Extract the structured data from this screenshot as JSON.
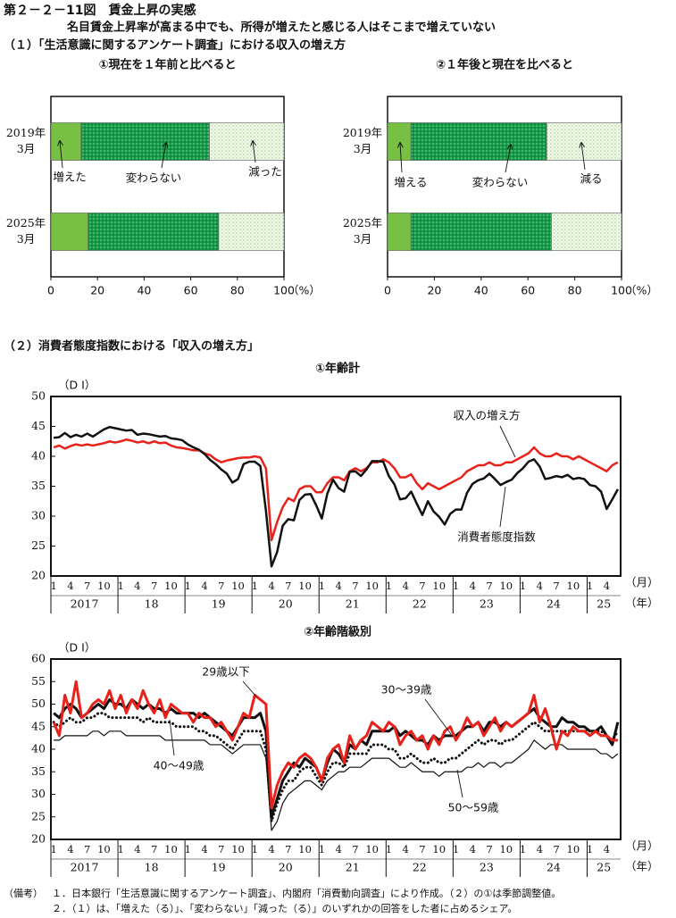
{
  "header": {
    "title": "第２－２－11図　賃金上昇の実感",
    "subtitle": "名目賃金上昇率が高まる中でも、所得が増えたと感じる人はそこまで増えていない"
  },
  "sections": [
    "（１）「生活意識に関するアンケート調査」における収入の増え方",
    "（２）消費者態度指数における「収入の増え方」"
  ],
  "notes": {
    "label": "（備考）",
    "items": [
      "１．日本銀行「生活意識に関するアンケート調査」、内閣府「消費動向調査」により作成。（２）の①は季節調整値。",
      "２．（１）は、「増えた（る）」、「変わらない」「減った（る）」のいずれかの回答をした者に占めるシェア。"
    ]
  },
  "chart_data": [
    {
      "type": "stacked_barh",
      "title": "①現在を１年前と比べると",
      "categories": [
        [
          "2019年",
          "3月"
        ],
        [
          "2025年",
          "3月"
        ]
      ],
      "series": [
        {
          "name": "増えた",
          "color": "#77c043",
          "pattern": "solid",
          "values": [
            13,
            16
          ]
        },
        {
          "name": "変わらない",
          "color": "#169b48",
          "pattern": "dense-dots",
          "values": [
            55,
            56
          ]
        },
        {
          "name": "減った",
          "color": "#8cc96a",
          "pattern": "sparse-dots",
          "values": [
            32,
            28
          ]
        }
      ],
      "xlim": [
        0,
        100
      ],
      "xticks": [
        0,
        20,
        40,
        60,
        80,
        100
      ],
      "x_unit": "（%）"
    },
    {
      "type": "stacked_barh",
      "title": "②１年後と現在を比べると",
      "categories": [
        [
          "2019年",
          "3月"
        ],
        [
          "2025年",
          "3月"
        ]
      ],
      "series": [
        {
          "name": "増える",
          "color": "#77c043",
          "pattern": "solid",
          "values": [
            10,
            10
          ]
        },
        {
          "name": "変わらない",
          "color": "#169b48",
          "pattern": "dense-dots",
          "values": [
            58,
            60
          ]
        },
        {
          "name": "減る",
          "color": "#8cc96a",
          "pattern": "sparse-dots",
          "values": [
            32,
            30
          ]
        }
      ],
      "xlim": [
        0,
        100
      ],
      "xticks": [
        0,
        20,
        40,
        60,
        80,
        100
      ],
      "x_unit": "（%）"
    },
    {
      "type": "line",
      "title": "①年齢計",
      "y_label": "（D I）",
      "x_unit": "（月）",
      "group_unit": "（年）",
      "categories": [
        "1",
        null,
        null,
        "4",
        null,
        null,
        "7",
        null,
        null,
        "10",
        null,
        null,
        "1",
        null,
        null,
        "4",
        null,
        null,
        "7",
        null,
        null,
        "10",
        null,
        null,
        "1",
        null,
        null,
        "4",
        null,
        null,
        "7",
        null,
        null,
        "10",
        null,
        null,
        "1",
        null,
        null,
        "4",
        null,
        null,
        "7",
        null,
        null,
        "10",
        null,
        null,
        "1",
        null,
        null,
        "4",
        null,
        null,
        "7",
        null,
        null,
        "10",
        null,
        null,
        "1",
        null,
        null,
        "4",
        null,
        null,
        "7",
        null,
        null,
        "10",
        null,
        null,
        "1",
        null,
        null,
        "4",
        null,
        null,
        "7",
        null,
        null,
        "10",
        null,
        null,
        "1",
        null,
        null,
        "4",
        null,
        null,
        "7",
        null,
        null,
        "10",
        null,
        null,
        "1",
        null,
        null,
        "4",
        null,
        null
      ],
      "year_labels": [
        "2017",
        "18",
        "19",
        "20",
        "21",
        "22",
        "23",
        "24",
        "25"
      ],
      "ylim": [
        20,
        50
      ],
      "yticks": [
        20,
        25,
        30,
        35,
        40,
        45,
        50
      ],
      "series": [
        {
          "name": "収入の増え方",
          "color": "#e8221b",
          "width": 2.5,
          "dash": "solid",
          "values": [
            41.5,
            41.8,
            41.3,
            41.7,
            42.0,
            41.8,
            42.0,
            41.8,
            42.0,
            42.2,
            42.5,
            42.3,
            42.5,
            42.8,
            42.6,
            42.3,
            42.5,
            42.2,
            42.5,
            42.2,
            42.3,
            41.8,
            41.5,
            41.4,
            41.2,
            41.0,
            41.0,
            40.5,
            40.2,
            39.5,
            39.0,
            39.3,
            39.5,
            39.7,
            39.8,
            39.8,
            40.0,
            39.8,
            38.0,
            26.0,
            29.0,
            31.5,
            33.0,
            32.5,
            34.5,
            35.0,
            35.0,
            34.0,
            34.0,
            35.5,
            36.5,
            36.5,
            36.0,
            37.5,
            38.0,
            37.5,
            38.0,
            39.0,
            39.0,
            39.5,
            39.0,
            38.0,
            36.5,
            36.5,
            37.0,
            35.5,
            34.5,
            35.5,
            35.0,
            34.5,
            35.0,
            35.5,
            36.0,
            36.5,
            37.5,
            38.0,
            38.5,
            38.5,
            39.0,
            38.5,
            38.5,
            39.0,
            39.0,
            39.5,
            40.0,
            40.5,
            41.5,
            40.5,
            40.0,
            40.0,
            40.5,
            40.0,
            40.0,
            39.5,
            40.0,
            39.5,
            39.0,
            38.5,
            38.0,
            37.5,
            38.5,
            39.0
          ]
        },
        {
          "name": "消費者態度指数",
          "color": "#111111",
          "width": 2.5,
          "dash": "solid",
          "values": [
            43.1,
            43.2,
            43.9,
            43.2,
            43.6,
            43.3,
            43.8,
            43.3,
            43.9,
            44.5,
            44.9,
            44.7,
            44.5,
            44.3,
            44.4,
            43.6,
            43.8,
            43.7,
            43.5,
            43.3,
            43.4,
            43.0,
            42.9,
            42.7,
            42.0,
            41.5,
            41.1,
            40.4,
            39.4,
            38.7,
            37.8,
            37.1,
            35.6,
            36.2,
            38.7,
            39.1,
            39.1,
            38.4,
            30.9,
            21.6,
            24.0,
            28.4,
            29.5,
            29.3,
            32.7,
            33.6,
            33.7,
            31.8,
            29.6,
            33.8,
            36.1,
            34.7,
            34.1,
            37.4,
            37.5,
            36.7,
            37.8,
            39.2,
            39.2,
            39.1,
            36.7,
            35.3,
            32.8,
            33.0,
            34.1,
            32.1,
            30.2,
            32.5,
            30.8,
            29.9,
            28.6,
            30.4,
            31.1,
            31.1,
            33.9,
            35.4,
            36.0,
            36.3,
            37.1,
            36.2,
            35.2,
            35.7,
            36.1,
            37.2,
            38.0,
            39.1,
            39.5,
            38.3,
            36.2,
            36.4,
            36.7,
            36.5,
            36.9,
            36.2,
            36.4,
            36.2,
            35.2,
            35.0,
            34.1,
            31.2,
            32.8,
            34.5
          ]
        }
      ]
    },
    {
      "type": "line",
      "title": "②年齢階級別",
      "y_label": "（D I）",
      "x_unit": "（月）",
      "group_unit": "（年）",
      "categories": [
        "1",
        null,
        null,
        "4",
        null,
        null,
        "7",
        null,
        null,
        "10",
        null,
        null,
        "1",
        null,
        null,
        "4",
        null,
        null,
        "7",
        null,
        null,
        "10",
        null,
        null,
        "1",
        null,
        null,
        "4",
        null,
        null,
        "7",
        null,
        null,
        "10",
        null,
        null,
        "1",
        null,
        null,
        "4",
        null,
        null,
        "7",
        null,
        null,
        "10",
        null,
        null,
        "1",
        null,
        null,
        "4",
        null,
        null,
        "7",
        null,
        null,
        "10",
        null,
        null,
        "1",
        null,
        null,
        "4",
        null,
        null,
        "7",
        null,
        null,
        "10",
        null,
        null,
        "1",
        null,
        null,
        "4",
        null,
        null,
        "7",
        null,
        null,
        "10",
        null,
        null,
        "1",
        null,
        null,
        "4",
        null,
        null,
        "7",
        null,
        null,
        "10",
        null,
        null,
        "1",
        null,
        null,
        "4",
        null,
        null
      ],
      "year_labels": [
        "2017",
        "18",
        "19",
        "20",
        "21",
        "22",
        "23",
        "24",
        "25"
      ],
      "ylim": [
        20,
        60
      ],
      "yticks": [
        20,
        25,
        30,
        35,
        40,
        45,
        50,
        55,
        60
      ],
      "series": [
        {
          "name": "50～59歳",
          "color": "#111111",
          "width": 1.2,
          "dash": "solid",
          "values": [
            42,
            42,
            43,
            43,
            43,
            43,
            43,
            44,
            44,
            43,
            44,
            44,
            44,
            43,
            43,
            43,
            43,
            43,
            43,
            43,
            42,
            42,
            42,
            42,
            42,
            42,
            42,
            42,
            41,
            41,
            41,
            40,
            39,
            40,
            41,
            41,
            41,
            41,
            38,
            22,
            24,
            28,
            30,
            31,
            32,
            33,
            33,
            32,
            31,
            33,
            34,
            35,
            35,
            36,
            36,
            36,
            37,
            38,
            38,
            38,
            38,
            37,
            36,
            36,
            37,
            36,
            35,
            35,
            35,
            34,
            35,
            35,
            35,
            35,
            36,
            36,
            37,
            36,
            37,
            37,
            36,
            37,
            37,
            38,
            39,
            40,
            42,
            41,
            40,
            41,
            41,
            41,
            40,
            40,
            40,
            40,
            40,
            40,
            39,
            39,
            38,
            39
          ]
        },
        {
          "name": "40～49歳",
          "color": "#111111",
          "width": 3,
          "dash": "dot",
          "values": [
            46,
            45,
            46,
            47,
            46,
            46,
            47,
            47,
            48,
            48,
            47,
            47,
            47,
            47,
            47,
            47,
            46,
            47,
            46,
            46,
            46,
            46,
            45,
            45,
            45,
            45,
            44,
            44,
            43,
            43,
            42,
            41,
            40,
            42,
            44,
            44,
            44,
            44,
            40,
            24,
            28,
            31,
            33,
            33,
            35,
            36,
            36,
            34,
            32,
            35,
            37,
            37,
            36,
            39,
            39,
            39,
            39,
            41,
            41,
            41,
            40,
            40,
            38,
            38,
            39,
            38,
            37,
            37,
            38,
            37,
            37,
            38,
            38,
            39,
            40,
            41,
            42,
            41,
            42,
            42,
            41,
            42,
            42,
            43,
            44,
            45,
            46,
            45,
            44,
            44,
            44,
            44,
            44,
            44,
            44,
            44,
            44,
            44,
            44,
            43,
            42,
            44
          ]
        },
        {
          "name": "30～39歳",
          "color": "#111111",
          "width": 3,
          "dash": "solid",
          "values": [
            48,
            47,
            49,
            50,
            49,
            47,
            48,
            49,
            50,
            49,
            51,
            50,
            50,
            49,
            51,
            50,
            49,
            50,
            49,
            49,
            48,
            49,
            48,
            48,
            48,
            48,
            47,
            48,
            47,
            46,
            45,
            44,
            43,
            45,
            47,
            47,
            47,
            48,
            44,
            25,
            29,
            33,
            35,
            37,
            36,
            38,
            37,
            36,
            33,
            37,
            40,
            39,
            37,
            41,
            40,
            42,
            41,
            44,
            44,
            44,
            44,
            45,
            43,
            44,
            43,
            42,
            42,
            41,
            43,
            42,
            43,
            43,
            43,
            44,
            45,
            45,
            46,
            44,
            46,
            46,
            45,
            46,
            45,
            46,
            47,
            48,
            49,
            47,
            46,
            45,
            45,
            47,
            46,
            46,
            45,
            45,
            44,
            44,
            45,
            43,
            41,
            46
          ]
        },
        {
          "name": "29歳以下",
          "color": "#e8221b",
          "width": 3,
          "dash": "solid",
          "values": [
            46,
            43,
            52,
            48,
            55,
            47,
            48,
            50,
            51,
            50,
            53,
            49,
            52,
            48,
            51,
            49,
            53,
            50,
            48,
            51,
            47,
            50,
            49,
            48,
            48,
            46,
            48,
            47,
            47,
            45,
            46,
            44,
            42,
            45,
            48,
            47,
            52,
            51,
            50,
            27,
            32,
            35,
            37,
            36,
            38,
            39,
            38,
            36,
            33,
            38,
            40,
            41,
            37,
            43,
            40,
            42,
            43,
            46,
            45,
            44,
            46,
            45,
            41,
            43,
            44,
            42,
            43,
            40,
            43,
            41,
            44,
            45,
            42,
            44,
            47,
            45,
            46,
            43,
            45,
            47,
            44,
            46,
            45,
            46,
            47,
            48,
            52,
            46,
            49,
            45,
            40,
            44,
            43,
            45,
            44,
            44,
            43,
            44,
            43,
            43,
            42,
            42
          ]
        }
      ]
    }
  ]
}
